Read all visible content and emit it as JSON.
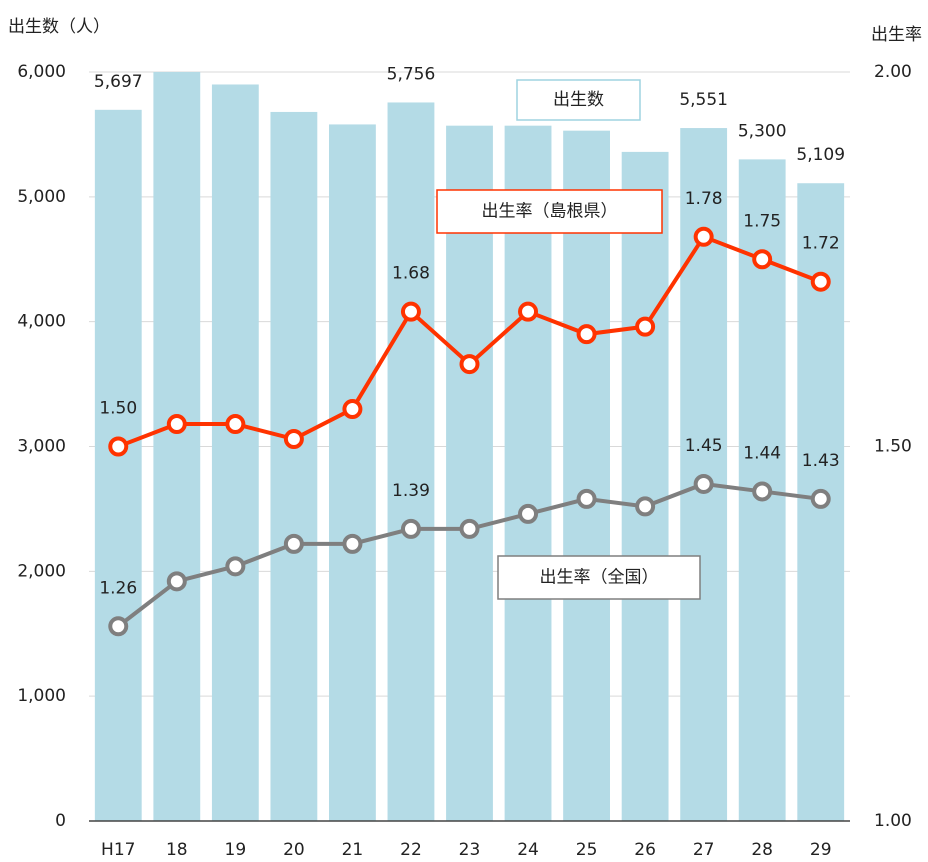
{
  "chart_data": {
    "type": "bar",
    "y_label": "出生数（人）",
    "y2_label": "出生率",
    "categories": [
      "H17",
      "18",
      "19",
      "20",
      "21",
      "22",
      "23",
      "24",
      "25",
      "26",
      "27",
      "28",
      "29"
    ],
    "series": [
      {
        "name": "出生数",
        "type": "bar",
        "color": "#b4dbe6",
        "values": [
          5697,
          6000,
          5900,
          5680,
          5580,
          5756,
          5570,
          5570,
          5530,
          5360,
          5551,
          5300,
          5109
        ],
        "value_labels": [
          "5,697",
          null,
          null,
          null,
          null,
          "5,756",
          null,
          null,
          null,
          null,
          "5,551",
          "5,300",
          "5,109"
        ]
      },
      {
        "name": "出生率（島根県）",
        "type": "line",
        "axis": "y2",
        "color": "#ff3300",
        "values": [
          1.5,
          1.53,
          1.53,
          1.51,
          1.55,
          1.68,
          1.61,
          1.68,
          1.65,
          1.66,
          1.78,
          1.75,
          1.72
        ],
        "value_labels": [
          "1.50",
          null,
          null,
          null,
          null,
          "1.68",
          null,
          null,
          null,
          null,
          "1.78",
          "1.75",
          "1.72"
        ]
      },
      {
        "name": "出生率（全国）",
        "type": "line",
        "axis": "y2",
        "color": "#7f7f7f",
        "values": [
          1.26,
          1.32,
          1.34,
          1.37,
          1.37,
          1.39,
          1.39,
          1.41,
          1.43,
          1.42,
          1.45,
          1.44,
          1.43
        ],
        "value_labels": [
          "1.26",
          null,
          null,
          null,
          null,
          "1.39",
          null,
          null,
          null,
          null,
          "1.45",
          "1.44",
          "1.43"
        ]
      }
    ],
    "ylim": [
      0,
      6000
    ],
    "yticks": [
      0,
      {
        "value": 1000,
        "label": "1,000"
      },
      {
        "value": 2000,
        "label": "2,000"
      },
      {
        "value": 3000,
        "label": "3,000"
      },
      {
        "value": 4000,
        "label": "4,000"
      },
      {
        "value": 5000,
        "label": "5,000"
      },
      {
        "value": 6000,
        "label": "6,000"
      }
    ],
    "y2lim": [
      1,
      2
    ],
    "y2ticks": [
      {
        "value": 1,
        "label": "1.00"
      },
      {
        "value": 1.5,
        "label": "1.50"
      },
      {
        "value": 2,
        "label": "2.00"
      }
    ],
    "grid": true
  }
}
